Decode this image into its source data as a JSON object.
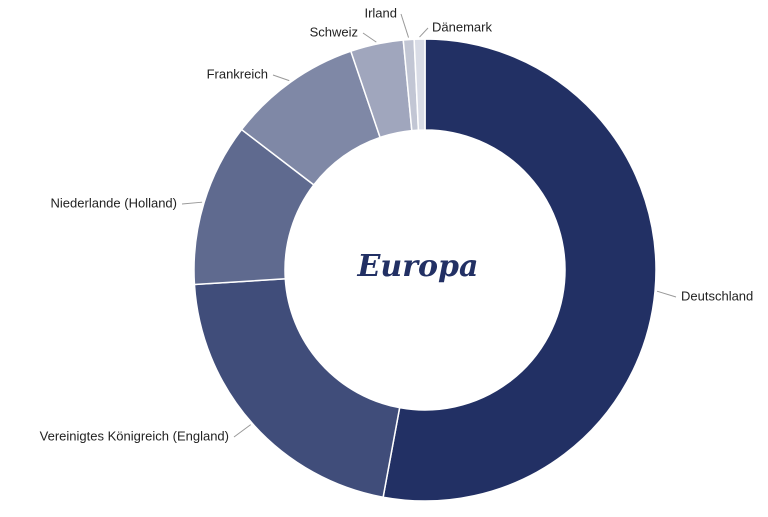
{
  "chart_data": {
    "type": "donut",
    "center_label": "Europa",
    "categories": [
      "Deutschland",
      "Vereinigtes Königreich (England)",
      "Niederlande (Holland)",
      "Frankreich",
      "Schweiz",
      "Irland",
      "Dänemark"
    ],
    "values": [
      52.9,
      21.1,
      11.4,
      9.4,
      3.7,
      0.75,
      0.75
    ],
    "colors": [
      "#223064",
      "#404d7a",
      "#5f6a8f",
      "#7f88a6",
      "#a0a6bd",
      "#c2c6d4",
      "#d9dce6"
    ]
  }
}
